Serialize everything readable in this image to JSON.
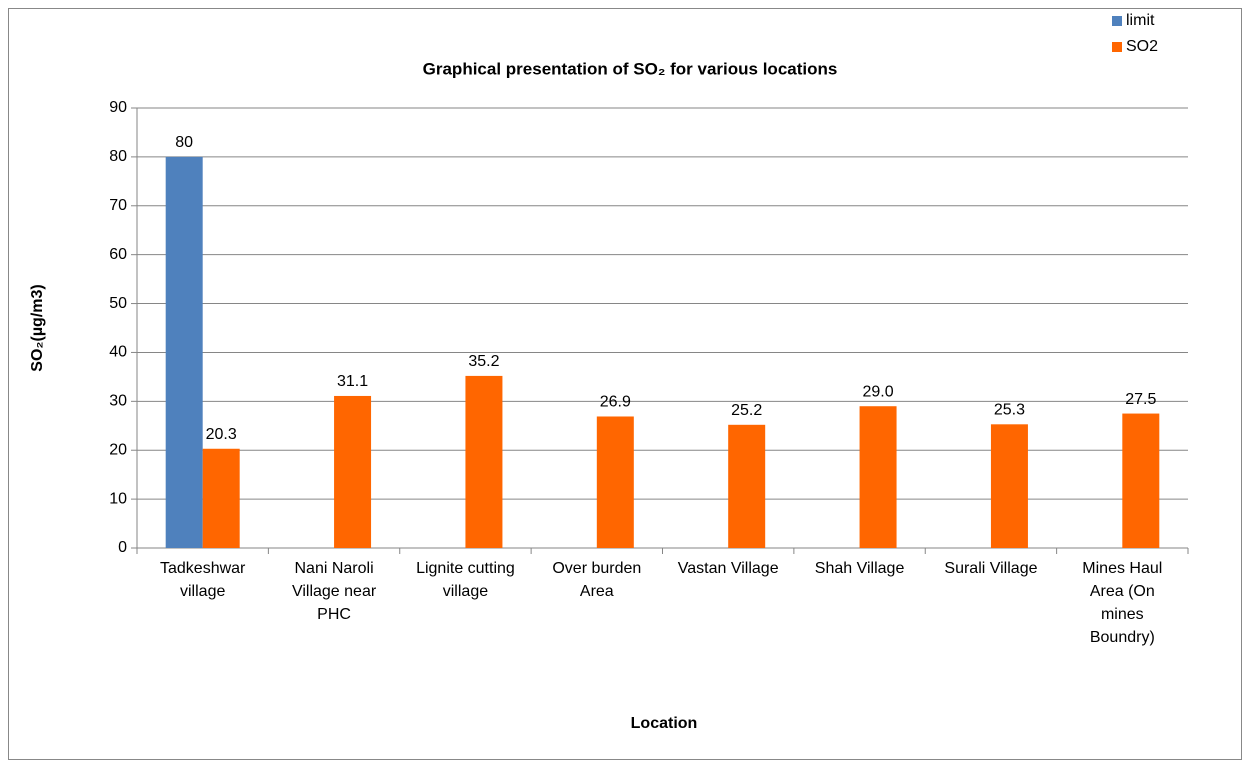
{
  "chart_data": {
    "type": "bar",
    "title": "Graphical presentation of SO₂ for various locations",
    "x_label": "Location",
    "y_label": "SO₂(µg/m3)",
    "categories": [
      "Tadkeshwar village",
      "Nani Naroli Village near PHC",
      "Lignite cutting village",
      "Over burden Area",
      "Vastan Village",
      "Shah Village",
      "Surali Village",
      "Mines Haul Area (On mines Boundry)"
    ],
    "series": [
      {
        "name": "limit",
        "color": "#4f81bd",
        "values": [
          80,
          null,
          null,
          null,
          null,
          null,
          null,
          null
        ]
      },
      {
        "name": "SO2",
        "color": "#ff6600",
        "values": [
          20.3,
          31.1,
          35.2,
          26.9,
          25.2,
          29.0,
          25.3,
          27.5
        ],
        "value_labels": [
          "20.3",
          "31.1",
          "35.2",
          "26.9",
          "25.2",
          "29.0",
          "25.3",
          "27.5"
        ]
      }
    ],
    "ylim": [
      0,
      90
    ],
    "yticks": [
      0,
      10,
      20,
      30,
      40,
      50,
      60,
      70,
      80,
      90
    ],
    "grid": true,
    "legend": "top-right"
  }
}
